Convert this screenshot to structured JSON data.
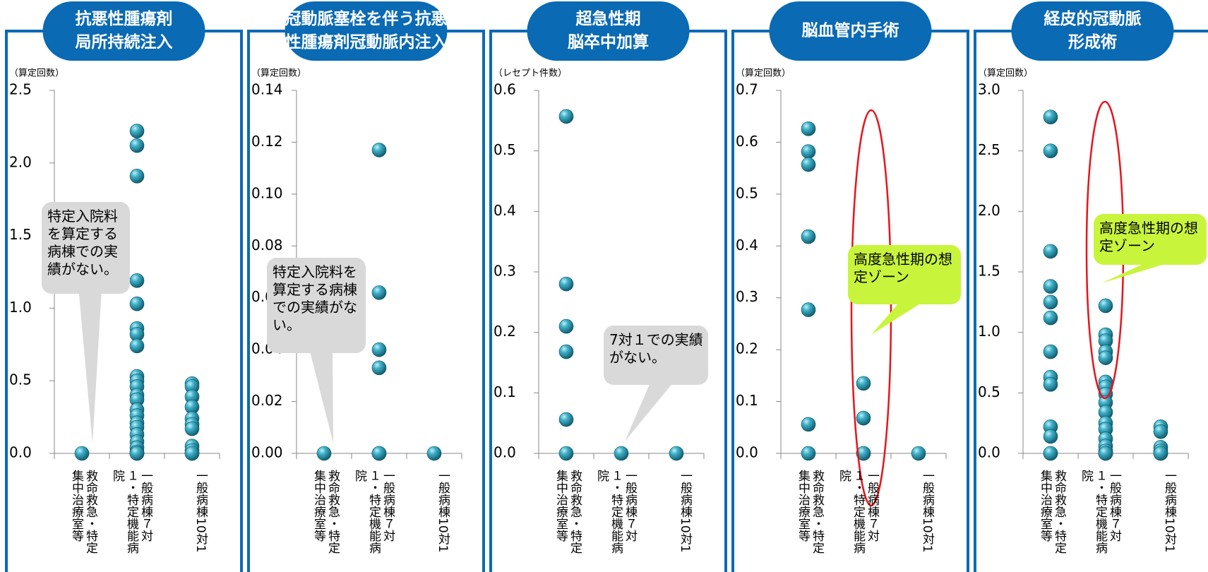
{
  "chart_data": [
    {
      "type": "scatter",
      "title": [
        "抗悪性腫瘍剤",
        "局所持続注入"
      ],
      "y_label": "（算定回数）",
      "categories": [
        "救命救急・特定集中治療室等",
        "一般病棟７対１・特定機能病院",
        "一般病棟10対1"
      ],
      "values": [
        [
          0
        ],
        [
          2.22,
          2.12,
          1.91,
          1.19,
          1.03,
          0.86,
          0.82,
          0.74,
          0.53,
          0.5,
          0.46,
          0.4,
          0.37,
          0.3,
          0.26,
          0.21,
          0.18,
          0.13,
          0.08,
          0.04,
          0.01,
          0,
          0,
          0
        ],
        [
          0.48,
          0.46,
          0.39,
          0.32,
          0.24,
          0.2,
          0.17,
          0.05,
          0.02,
          0,
          0
        ]
      ],
      "ylim": [
        0,
        2.5
      ],
      "yticks": [
        {
          "value": 0,
          "label": "0.0"
        },
        0.5,
        {
          "value": 1,
          "label": "1.0"
        },
        1.5,
        {
          "value": 2,
          "label": "2.0"
        },
        2.5
      ],
      "annotation": "特定入院料を算定する病棟での実績がない。",
      "color": "#2a9bb5"
    },
    {
      "type": "scatter",
      "title": [
        "冠動脈塞栓を伴う抗悪",
        "性腫瘍剤冠動脈内注入"
      ],
      "y_label": "（算定回数）",
      "categories": [
        "救命救急・特定集中治療室等",
        "一般病棟７対１・特定機能病院",
        "一般病棟10対1"
      ],
      "values": [
        [
          0
        ],
        [
          0.117,
          0.062,
          0.04,
          0.033,
          0,
          0,
          0
        ],
        [
          0
        ]
      ],
      "ylim": [
        0,
        0.14
      ],
      "yticks": [
        {
          "value": 0,
          "label": "0.00"
        },
        0.02,
        0.04,
        0.06,
        0.08,
        {
          "value": 0.1,
          "label": "0.10"
        },
        0.12,
        0.14
      ],
      "annotation": "特定入院料を算定する病棟での実績がない。",
      "color": "#2a9bb5"
    },
    {
      "type": "scatter",
      "title": [
        "超急性期",
        "脳卒中加算"
      ],
      "y_label": "（レセプト件数）",
      "categories": [
        "救命救急・特定集中治療室等",
        "一般病棟７対１・特定機能病院",
        "一般病棟10対1"
      ],
      "values": [
        [
          0.557,
          0.28,
          0.21,
          0.168,
          0.056,
          0
        ],
        [
          0
        ],
        [
          0
        ]
      ],
      "ylim": [
        0,
        0.6
      ],
      "yticks": [
        {
          "value": 0,
          "label": "0.0"
        },
        0.1,
        0.2,
        0.3,
        0.4,
        0.5,
        0.6
      ],
      "annotation": "7対１での実績がない。",
      "color": "#2a9bb5"
    },
    {
      "type": "scatter",
      "title": [
        "脳血管内手術"
      ],
      "y_label": "（算定回数）",
      "categories": [
        "救命救急・特定集中治療室等",
        "一般病棟７対１・特定機能病院",
        "一般病棟10対1"
      ],
      "values": [
        [
          0.626,
          0.582,
          0.557,
          0.418,
          0.277,
          0.056,
          0
        ],
        [
          0.135,
          0.068,
          0,
          0
        ],
        [
          0
        ]
      ],
      "ylim": [
        0,
        0.7
      ],
      "yticks": [
        {
          "value": 0,
          "label": "0.0"
        },
        0.1,
        0.2,
        0.3,
        0.4,
        0.5,
        0.6,
        0.7
      ],
      "annotation": "高度急性期の想定ゾーン",
      "color": "#2a9bb5"
    },
    {
      "type": "scatter",
      "title": [
        "経皮的冠動脈",
        "形成術"
      ],
      "y_label": "（算定回数）",
      "categories": [
        "救命救急・特定集中治療室等",
        "一般病棟７対１・特定機能病院",
        "一般病棟10対1"
      ],
      "values": [
        [
          2.78,
          2.5,
          1.67,
          1.38,
          1.25,
          1.12,
          0.84,
          0.63,
          0.57,
          0.22,
          0.14,
          0,
          0
        ],
        [
          1.22,
          0.98,
          0.93,
          0.84,
          0.79,
          0.59,
          0.55,
          0.49,
          0.42,
          0.34,
          0.25,
          0.2,
          0.12,
          0.06,
          0.02,
          0,
          0,
          0
        ],
        [
          0.22,
          0.18,
          0.05,
          0.02,
          0,
          0
        ]
      ],
      "ylim": [
        0,
        3
      ],
      "yticks": [
        {
          "value": 0,
          "label": "0.0"
        },
        0.5,
        {
          "value": 1,
          "label": "1.0"
        },
        1.5,
        {
          "value": 2,
          "label": "2.0"
        },
        2.5,
        {
          "value": 3,
          "label": "3.0"
        }
      ],
      "annotation": "高度急性期の想定ゾーン",
      "color": "#2a9bb5"
    }
  ]
}
